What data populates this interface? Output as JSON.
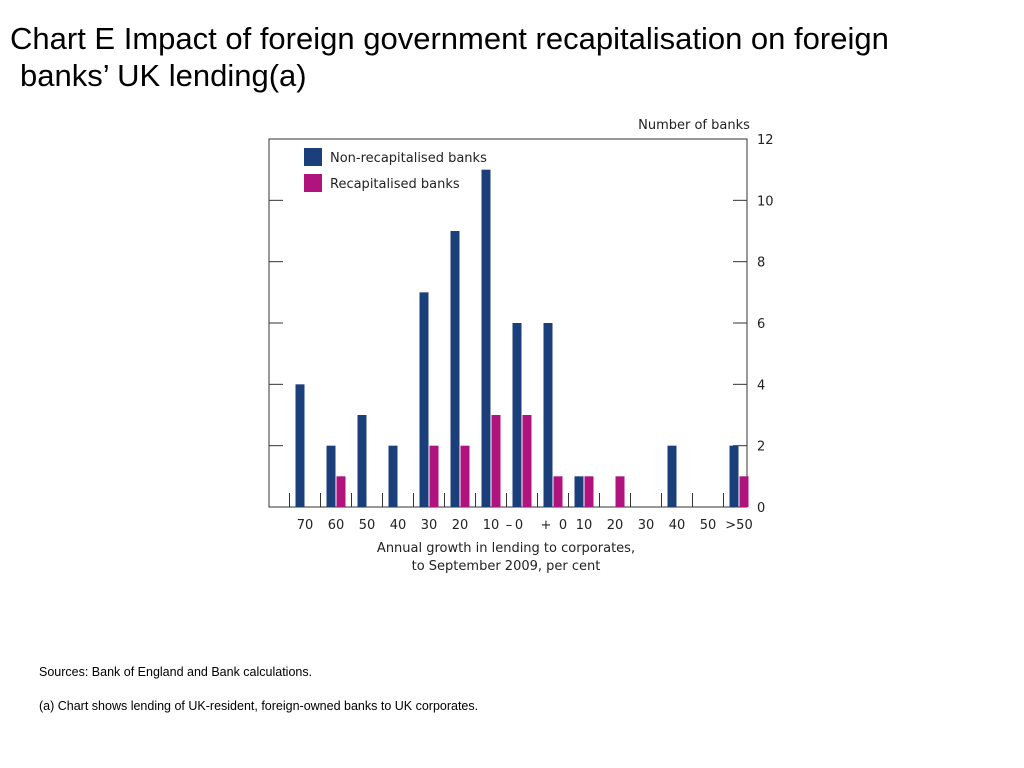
{
  "title": {
    "line1": "Chart E  Impact of foreign government recapitalisation on foreign",
    "line2": "banks’ UK lending(a)"
  },
  "chart_data": {
    "type": "bar",
    "title": "Chart E  Impact of foreign government recapitalisation on foreign banks’ UK lending(a)",
    "categories": [
      "70",
      "60",
      "50",
      "40",
      "30",
      "20",
      "10",
      "0",
      "0",
      "10",
      "20",
      "30",
      "40",
      "50",
      ">50"
    ],
    "series": [
      {
        "name": "Non-recapitalised banks",
        "color": "#1b3f7a",
        "values": [
          4,
          2,
          3,
          2,
          7,
          9,
          11,
          6,
          6,
          1,
          0,
          0,
          2,
          0,
          2
        ]
      },
      {
        "name": "Recapitalised banks",
        "color": "#b0127e",
        "values": [
          0,
          1,
          0,
          0,
          2,
          2,
          3,
          3,
          1,
          1,
          1,
          0,
          0,
          0,
          1
        ]
      }
    ],
    "xlabel_line1": "Annual growth in lending to corporates,",
    "xlabel_line2": "to September 2009, per cent",
    "ylabel": "Number of banks",
    "ylim": [
      0,
      12
    ],
    "yticks": [
      0,
      2,
      4,
      6,
      8,
      10,
      12
    ],
    "sign_labels": {
      "minus": "–",
      "plus": "+"
    },
    "legend_position": "top-left",
    "grid": false
  },
  "footnotes": {
    "sources": "Sources:  Bank of England and Bank calculations.",
    "note_a": "(a)  Chart shows lending of UK-resident, foreign-owned banks to UK corporates."
  }
}
